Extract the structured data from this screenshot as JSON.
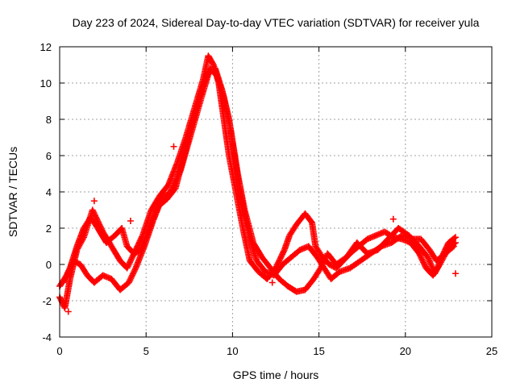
{
  "chart_data": {
    "type": "scatter",
    "title": "Day 223 of 2024, Sidereal Day-to-day VTEC variation (SDTVAR) for receiver yula",
    "xlabel": "GPS time / hours",
    "ylabel": "SDTVAR / TECUs",
    "xlim": [
      0,
      25
    ],
    "ylim": [
      -4,
      12
    ],
    "xticks": [
      0,
      5,
      10,
      15,
      20,
      25
    ],
    "yticks": [
      -4,
      -2,
      0,
      2,
      4,
      6,
      8,
      10,
      12
    ],
    "grid": true,
    "marker": "+",
    "series": [
      {
        "name": "SDTVAR",
        "color": "#ff0000",
        "tracks": [
          {
            "x": [
              0.0,
              0.3,
              0.6,
              1.0,
              1.4,
              1.9,
              2.1,
              2.5,
              3.0,
              3.5,
              3.9,
              4.3,
              4.8,
              5.3,
              5.8,
              6.3,
              6.8,
              7.3,
              7.8,
              8.3,
              8.6,
              8.9,
              9.2,
              9.5,
              9.8,
              10.2,
              10.6,
              11.0,
              11.5,
              12.0,
              12.5,
              13.0,
              13.3,
              13.7,
              14.2,
              14.6,
              14.8,
              15.2,
              15.6,
              16.0,
              16.4,
              16.8,
              17.3,
              17.8,
              18.3,
              18.8,
              19.3,
              19.8,
              20.3,
              20.8,
              21.2,
              21.6,
              21.9,
              22.2,
              22.5,
              22.9
            ],
            "y": [
              -1.8,
              -2.4,
              -0.8,
              0.8,
              1.5,
              3.0,
              2.6,
              1.8,
              1.0,
              0.2,
              -0.2,
              0.6,
              1.6,
              3.0,
              3.8,
              4.4,
              5.6,
              7.0,
              8.6,
              10.2,
              11.5,
              11.0,
              10.0,
              8.0,
              6.0,
              4.0,
              2.0,
              0.2,
              -0.4,
              -0.8,
              -0.2,
              0.8,
              1.6,
              2.2,
              2.8,
              2.3,
              1.0,
              0.4,
              0.0,
              -0.2,
              0.2,
              0.6,
              1.0,
              1.4,
              1.6,
              1.8,
              1.5,
              1.4,
              1.2,
              0.6,
              -0.2,
              -0.6,
              -0.1,
              0.6,
              1.2,
              1.5
            ]
          },
          {
            "x": [
              0.0,
              0.4,
              0.8,
              1.2,
              1.6,
              2.0,
              2.5,
              3.0,
              3.5,
              4.0,
              4.4,
              4.9,
              5.4,
              5.9,
              6.4,
              7.0,
              7.6,
              8.2,
              8.7,
              9.1,
              9.5,
              9.9,
              10.3,
              10.7,
              11.2,
              11.7,
              12.2,
              12.7,
              13.2,
              13.7,
              14.2,
              14.7,
              15.1,
              15.5,
              16.0,
              16.6,
              17.2,
              17.8,
              18.4,
              19.0,
              19.6,
              20.2,
              20.8,
              21.3,
              21.7,
              22.1,
              22.5,
              22.9
            ],
            "y": [
              -1.2,
              -0.6,
              0.2,
              0.0,
              -0.6,
              -1.0,
              -0.6,
              -0.8,
              -1.4,
              -1.0,
              -0.2,
              1.0,
              2.4,
              3.6,
              4.0,
              5.2,
              7.2,
              9.2,
              10.8,
              10.4,
              9.2,
              7.4,
              5.0,
              3.0,
              1.2,
              0.4,
              -0.2,
              -0.8,
              -1.2,
              -1.5,
              -1.4,
              -0.8,
              -0.2,
              0.6,
              0.0,
              0.4,
              1.2,
              0.6,
              0.8,
              1.4,
              2.0,
              1.6,
              1.0,
              0.4,
              -0.5,
              0.2,
              0.9,
              1.2
            ]
          },
          {
            "x": [
              0.2,
              0.6,
              1.0,
              1.4,
              1.8,
              2.2,
              2.7,
              3.2,
              3.6,
              3.9,
              4.3,
              4.7,
              5.2,
              5.7,
              6.2,
              6.7,
              7.2,
              7.7,
              8.2,
              8.6,
              9.0,
              9.4,
              9.8,
              10.2,
              10.6,
              11.0,
              11.4,
              11.9,
              12.4,
              12.9,
              13.4,
              13.9,
              14.4,
              14.9,
              15.3,
              15.7,
              16.2,
              16.8,
              17.4,
              18.0,
              18.6,
              19.2,
              19.8,
              20.4,
              20.9,
              21.4,
              21.8,
              22.3,
              22.8
            ],
            "y": [
              -1.0,
              -0.2,
              1.0,
              2.0,
              2.6,
              2.0,
              1.2,
              1.6,
              2.0,
              1.0,
              0.6,
              0.8,
              2.0,
              3.2,
              3.6,
              4.2,
              6.0,
              7.8,
              9.6,
              10.6,
              10.8,
              9.6,
              8.0,
              5.4,
              3.2,
              1.4,
              0.2,
              -0.4,
              -0.6,
              0.0,
              0.4,
              0.8,
              1.0,
              0.4,
              -0.2,
              -0.8,
              -0.4,
              -0.2,
              0.2,
              0.6,
              1.0,
              1.2,
              1.6,
              1.4,
              1.4,
              0.8,
              0.2,
              0.6,
              1.0
            ]
          }
        ],
        "outliers": {
          "x": [
            6.6,
            2.0,
            4.1,
            19.3,
            22.9,
            12.3,
            0.5
          ],
          "y": [
            6.5,
            3.5,
            2.4,
            2.5,
            -0.5,
            -1.0,
            -2.6
          ]
        }
      }
    ]
  }
}
